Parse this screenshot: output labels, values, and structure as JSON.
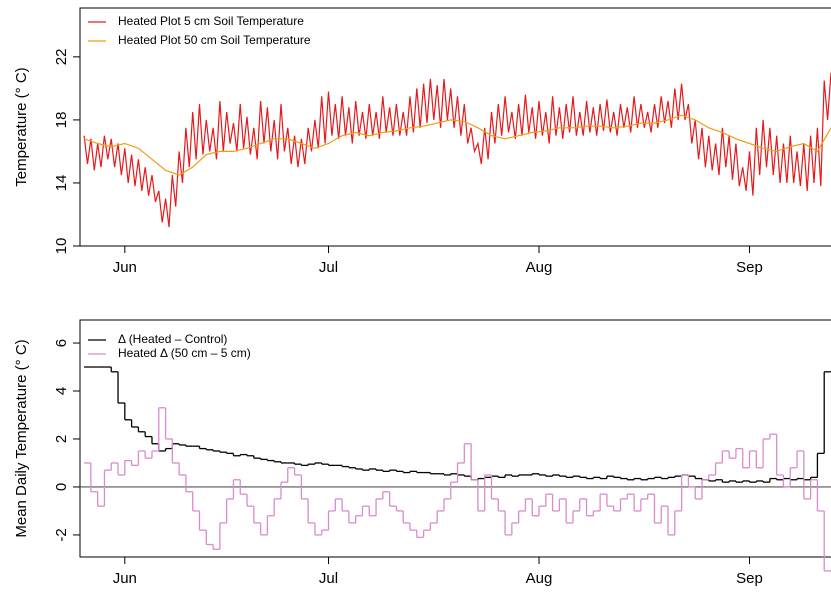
{
  "chart_data": [
    {
      "type": "line",
      "ylabel": "Temperature (° C)",
      "legend": "upper left",
      "xlim": [
        145.4,
        256
      ],
      "xticks": [
        {
          "value": 152,
          "label": "Jun"
        },
        {
          "value": 182,
          "label": "Jul"
        },
        {
          "value": 213,
          "label": "Aug"
        },
        {
          "value": 244,
          "label": "Sep"
        }
      ],
      "ylim": [
        10,
        25.1
      ],
      "yticks": [
        10,
        14,
        18,
        22
      ],
      "series": [
        {
          "name": "Heated Plot 5 cm Soil Temperature",
          "color": "#e41a1c",
          "x": [
            146,
            146.5,
            147,
            147.5,
            148,
            148.5,
            149,
            149.5,
            150,
            150.5,
            151,
            151.5,
            152,
            152.5,
            153,
            153.5,
            154,
            154.5,
            155,
            155.5,
            156,
            156.5,
            157,
            157.5,
            158,
            158.5,
            159,
            159.5,
            160,
            160.5,
            161,
            161.5,
            162,
            162.5,
            163,
            163.5,
            164,
            164.5,
            165,
            165.5,
            166,
            166.5,
            167,
            167.5,
            168,
            168.5,
            169,
            169.5,
            170,
            170.5,
            171,
            171.5,
            172,
            172.5,
            173,
            173.5,
            174,
            174.5,
            175,
            175.5,
            176,
            176.5,
            177,
            177.5,
            178,
            178.5,
            179,
            179.5,
            180,
            180.5,
            181,
            181.5,
            182,
            182.5,
            183,
            183.5,
            184,
            184.5,
            185,
            185.5,
            186,
            186.5,
            187,
            187.5,
            188,
            188.5,
            189,
            189.5,
            190,
            190.5,
            191,
            191.5,
            192,
            192.5,
            193,
            193.5,
            194,
            194.5,
            195,
            195.5,
            196,
            196.5,
            197,
            197.5,
            198,
            198.5,
            199,
            199.5,
            200,
            200.5,
            201,
            201.5,
            202,
            202.5,
            203,
            203.5,
            204,
            204.5,
            205,
            205.5,
            206,
            206.5,
            207,
            207.5,
            208,
            208.5,
            209,
            209.5,
            210,
            210.5,
            211,
            211.5,
            212,
            212.5,
            213,
            213.5,
            214,
            214.5,
            215,
            215.5,
            216,
            216.5,
            217,
            217.5,
            218,
            218.5,
            219,
            219.5,
            220,
            220.5,
            221,
            221.5,
            222,
            222.5,
            223,
            223.5,
            224,
            224.5,
            225,
            225.5,
            226,
            226.5,
            227,
            227.5,
            228,
            228.5,
            229,
            229.5,
            230,
            230.5,
            231,
            231.5,
            232,
            232.5,
            233,
            233.5,
            234,
            234.5,
            235,
            235.5,
            236,
            236.5,
            237,
            237.5,
            238,
            238.5,
            239,
            239.5,
            240,
            240.5,
            241,
            241.5,
            242,
            242.5,
            243,
            243.5,
            244,
            244.5,
            245,
            245.5,
            246,
            246.5,
            247,
            247.5,
            248,
            248.5,
            249,
            249.5,
            250,
            250.5,
            251,
            251.5,
            252,
            252.5,
            253,
            253.5,
            254,
            254.5,
            255,
            255.5,
            256
          ],
          "values": [
            17.0,
            15.2,
            16.8,
            14.8,
            16.5,
            15.0,
            17.0,
            15.5,
            16.8,
            15.0,
            16.5,
            14.5,
            16.2,
            14.0,
            15.8,
            13.8,
            15.5,
            13.5,
            15.0,
            13.2,
            14.5,
            12.8,
            13.5,
            11.5,
            13.0,
            11.2,
            14.5,
            12.5,
            16.0,
            14.0,
            17.5,
            15.0,
            18.5,
            15.5,
            19.0,
            15.8,
            18.0,
            16.0,
            17.5,
            15.5,
            19.2,
            16.0,
            18.5,
            16.5,
            17.8,
            16.0,
            19.0,
            16.2,
            18.2,
            15.8,
            17.5,
            15.5,
            19.2,
            16.5,
            18.8,
            16.0,
            18.0,
            15.5,
            19.0,
            16.0,
            17.5,
            15.2,
            17.0,
            15.0,
            16.8,
            15.2,
            17.5,
            16.0,
            18.0,
            16.2,
            19.5,
            16.5,
            19.8,
            17.0,
            19.0,
            16.8,
            19.5,
            17.0,
            18.8,
            16.5,
            19.2,
            17.0,
            18.5,
            16.8,
            19.0,
            17.0,
            18.5,
            16.8,
            19.5,
            17.2,
            18.8,
            17.0,
            19.0,
            17.0,
            18.5,
            17.0,
            19.5,
            17.2,
            20.0,
            17.5,
            20.3,
            17.8,
            20.6,
            18.0,
            20.2,
            17.5,
            20.6,
            18.0,
            20.0,
            17.5,
            19.5,
            17.0,
            19.0,
            16.5,
            17.5,
            16.0,
            16.5,
            15.2,
            17.5,
            15.5,
            18.5,
            16.5,
            19.0,
            17.0,
            19.5,
            17.2,
            18.5,
            16.8,
            19.0,
            17.0,
            19.6,
            17.2,
            18.8,
            16.8,
            19.2,
            17.0,
            18.5,
            16.5,
            19.5,
            17.0,
            18.8,
            16.8,
            19.0,
            17.2,
            19.5,
            17.0,
            18.5,
            17.0,
            19.2,
            17.2,
            18.8,
            17.0,
            19.0,
            17.3,
            19.3,
            17.2,
            18.5,
            17.0,
            19.0,
            17.5,
            18.8,
            17.2,
            19.5,
            17.5,
            19.0,
            17.5,
            18.5,
            17.2,
            19.0,
            17.5,
            19.5,
            17.8,
            19.2,
            17.5,
            20.0,
            18.0,
            20.3,
            18.0,
            19.0,
            16.5,
            18.0,
            15.5,
            17.5,
            15.0,
            17.0,
            14.8,
            16.5,
            14.5,
            17.5,
            15.0,
            17.0,
            14.2,
            16.5,
            13.8,
            15.0,
            13.5,
            16.0,
            13.2,
            17.5,
            14.5,
            18.0,
            15.0,
            17.5,
            14.5,
            17.0,
            14.0,
            16.5,
            14.0,
            17.0,
            14.0,
            16.0,
            13.8,
            16.5,
            13.5,
            17.0,
            14.0,
            17.5,
            13.8,
            20.5,
            18.0,
            21.0
          ]
        },
        {
          "name": "Heated Plot 50 cm Soil Temperature",
          "color": "#f39c12",
          "x": [
            146,
            148,
            150,
            152,
            154,
            156,
            158,
            160,
            162,
            164,
            166,
            168,
            170,
            172,
            174,
            176,
            178,
            180,
            182,
            184,
            186,
            188,
            190,
            192,
            194,
            196,
            198,
            200,
            202,
            204,
            206,
            208,
            210,
            212,
            214,
            216,
            218,
            220,
            222,
            224,
            226,
            228,
            230,
            232,
            234,
            236,
            238,
            240,
            242,
            244,
            246,
            248,
            250,
            252,
            254,
            256
          ],
          "values": [
            16.8,
            16.5,
            16.3,
            16.5,
            16.2,
            15.5,
            14.8,
            14.5,
            15.0,
            15.8,
            16.0,
            16.0,
            16.2,
            16.5,
            16.8,
            16.8,
            16.5,
            16.2,
            16.5,
            17.0,
            17.2,
            17.0,
            17.2,
            17.3,
            17.5,
            17.6,
            17.8,
            18.0,
            17.9,
            17.5,
            17.0,
            16.8,
            17.0,
            17.2,
            17.3,
            17.5,
            17.5,
            17.6,
            17.6,
            17.5,
            17.6,
            17.8,
            17.8,
            18.0,
            18.3,
            18.0,
            17.5,
            17.2,
            16.8,
            16.5,
            16.2,
            16.0,
            16.3,
            16.5,
            16.0,
            17.5
          ]
        }
      ]
    },
    {
      "type": "step",
      "ylabel": "Mean Daily Temperature (° C)",
      "legend": "upper left",
      "hline": 0,
      "xlim": [
        145.4,
        256
      ],
      "xticks": [
        {
          "value": 152,
          "label": "Jun"
        },
        {
          "value": 182,
          "label": "Jul"
        },
        {
          "value": 213,
          "label": "Aug"
        },
        {
          "value": 244,
          "label": "Sep"
        }
      ],
      "ylim": [
        -2.92,
        6.96
      ],
      "yticks": [
        -2,
        0,
        2,
        4,
        6
      ],
      "series": [
        {
          "name": "Δ (Heated – Control)",
          "color": "#000000",
          "x": [
            146,
            147,
            148,
            149,
            150,
            151,
            152,
            153,
            154,
            155,
            156,
            157,
            158,
            159,
            160,
            161,
            162,
            163,
            164,
            165,
            166,
            167,
            168,
            169,
            170,
            171,
            172,
            173,
            174,
            175,
            176,
            177,
            178,
            179,
            180,
            181,
            182,
            183,
            184,
            185,
            186,
            187,
            188,
            189,
            190,
            191,
            192,
            193,
            194,
            195,
            196,
            197,
            198,
            199,
            200,
            201,
            202,
            203,
            204,
            205,
            206,
            207,
            208,
            209,
            210,
            211,
            212,
            213,
            214,
            215,
            216,
            217,
            218,
            219,
            220,
            221,
            222,
            223,
            224,
            225,
            226,
            227,
            228,
            229,
            230,
            231,
            232,
            233,
            234,
            235,
            236,
            237,
            238,
            239,
            240,
            241,
            242,
            243,
            244,
            245,
            246,
            247,
            248,
            249,
            250,
            251,
            252,
            253,
            254,
            255,
            256
          ],
          "values": [
            5.0,
            5.0,
            5.0,
            5.0,
            4.8,
            3.5,
            2.8,
            2.5,
            2.3,
            2.1,
            1.8,
            1.5,
            1.6,
            1.8,
            1.75,
            1.7,
            1.7,
            1.6,
            1.55,
            1.5,
            1.45,
            1.4,
            1.3,
            1.35,
            1.3,
            1.2,
            1.15,
            1.1,
            1.05,
            1.0,
            1.0,
            0.95,
            0.9,
            0.95,
            1.0,
            0.95,
            0.9,
            0.9,
            0.85,
            0.8,
            0.75,
            0.7,
            0.75,
            0.7,
            0.65,
            0.7,
            0.65,
            0.6,
            0.65,
            0.6,
            0.6,
            0.55,
            0.55,
            0.5,
            0.55,
            0.5,
            0.45,
            0.3,
            0.35,
            0.4,
            0.45,
            0.4,
            0.5,
            0.45,
            0.5,
            0.5,
            0.55,
            0.5,
            0.45,
            0.5,
            0.45,
            0.4,
            0.45,
            0.4,
            0.35,
            0.4,
            0.35,
            0.45,
            0.4,
            0.35,
            0.3,
            0.35,
            0.3,
            0.35,
            0.4,
            0.35,
            0.4,
            0.45,
            0.5,
            0.45,
            0.35,
            0.3,
            0.25,
            0.3,
            0.2,
            0.25,
            0.2,
            0.25,
            0.2,
            0.25,
            0.2,
            0.35,
            0.3,
            0.35,
            0.3,
            0.35,
            0.3,
            0.4,
            1.4,
            4.8,
            4.8
          ]
        },
        {
          "name": "Heated Δ (50 cm – 5 cm)",
          "color": "#d98ccc",
          "x": [
            146,
            147,
            148,
            149,
            150,
            151,
            152,
            153,
            154,
            155,
            156,
            157,
            158,
            159,
            160,
            161,
            162,
            163,
            164,
            165,
            166,
            167,
            168,
            169,
            170,
            171,
            172,
            173,
            174,
            175,
            176,
            177,
            178,
            179,
            180,
            181,
            182,
            183,
            184,
            185,
            186,
            187,
            188,
            189,
            190,
            191,
            192,
            193,
            194,
            195,
            196,
            197,
            198,
            199,
            200,
            201,
            202,
            203,
            204,
            205,
            206,
            207,
            208,
            209,
            210,
            211,
            212,
            213,
            214,
            215,
            216,
            217,
            218,
            219,
            220,
            221,
            222,
            223,
            224,
            225,
            226,
            227,
            228,
            229,
            230,
            231,
            232,
            233,
            234,
            235,
            236,
            237,
            238,
            239,
            240,
            241,
            242,
            243,
            244,
            245,
            246,
            247,
            248,
            249,
            250,
            251,
            252,
            253,
            254,
            255,
            256
          ],
          "values": [
            1.0,
            -0.2,
            -0.8,
            0.7,
            1.0,
            0.5,
            1.1,
            0.9,
            1.5,
            1.2,
            1.5,
            3.3,
            2.0,
            1.0,
            0.5,
            -0.2,
            -1.0,
            -1.8,
            -2.4,
            -2.6,
            -1.5,
            -0.5,
            0.3,
            -0.3,
            -0.8,
            -1.5,
            -2.0,
            -1.2,
            -0.5,
            0.2,
            0.8,
            0.5,
            -0.5,
            -1.5,
            -2.0,
            -1.8,
            -1.0,
            -0.5,
            -1.0,
            -1.5,
            -1.2,
            -0.8,
            -1.2,
            -0.5,
            -0.2,
            -0.8,
            -1.0,
            -1.5,
            -1.8,
            -2.1,
            -1.8,
            -1.5,
            -1.0,
            -0.5,
            0.2,
            1.0,
            1.8,
            0.3,
            -1.0,
            0.5,
            -0.5,
            -1.0,
            -2.0,
            -1.5,
            -1.0,
            -0.5,
            -1.2,
            -0.8,
            -0.3,
            -1.0,
            -0.5,
            -1.5,
            -1.0,
            -0.5,
            -1.2,
            -1.0,
            -0.3,
            -0.8,
            -1.0,
            -0.5,
            -0.3,
            -1.0,
            -0.5,
            -0.3,
            -1.5,
            -0.8,
            -2.0,
            -1.0,
            0.5,
            0.0,
            -0.5,
            0.3,
            0.5,
            1.0,
            1.5,
            1.2,
            1.6,
            0.8,
            1.5,
            0.8,
            2.0,
            2.2,
            0.5,
            0.0,
            0.8,
            1.5,
            -0.5,
            0.3,
            -1.0,
            -3.5,
            -3.5
          ]
        }
      ]
    }
  ]
}
